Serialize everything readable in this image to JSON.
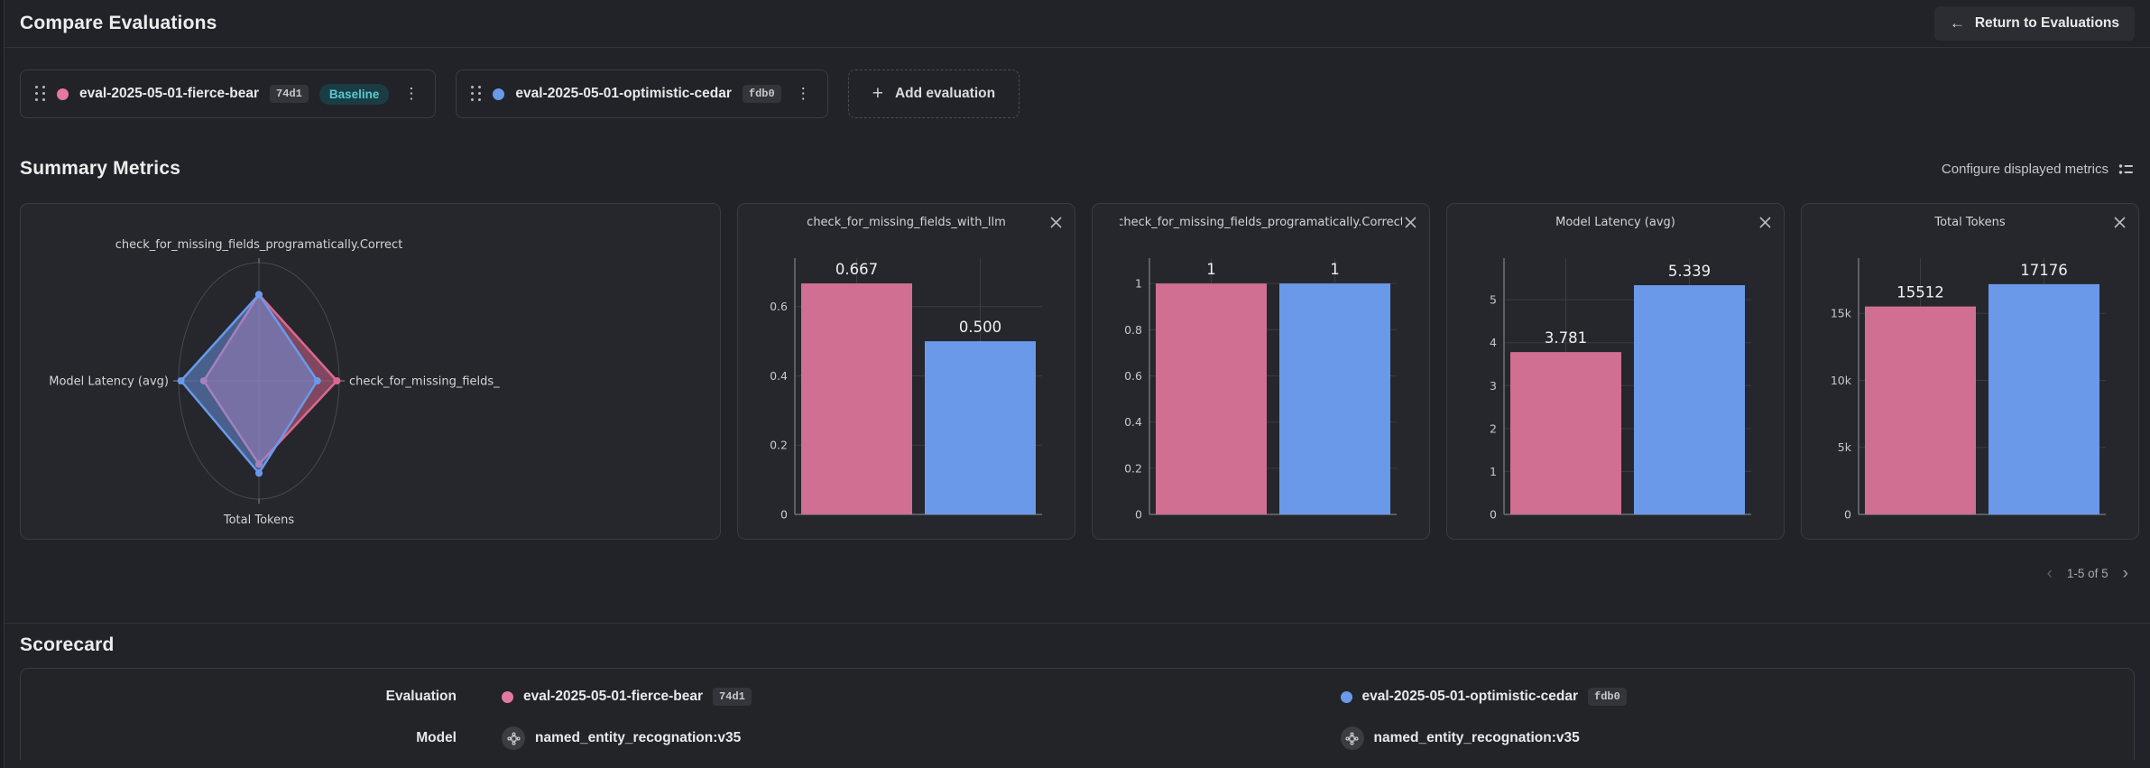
{
  "header": {
    "title": "Compare Evaluations",
    "return_button_label": "Return to Evaluations"
  },
  "toolbar": {
    "evaluations": [
      {
        "name": "eval-2025-05-01-fierce-bear",
        "hash": "74d1",
        "color": "#e4799f",
        "badge": "Baseline"
      },
      {
        "name": "eval-2025-05-01-optimistic-cedar",
        "hash": "fdb0",
        "color": "#6b99ea",
        "badge": null
      }
    ],
    "add_label": "Add evaluation"
  },
  "summary": {
    "title": "Summary Metrics",
    "configure_label": "Configure displayed metrics",
    "pagination": {
      "range": "1-5 of 5",
      "prev": "‹",
      "next": "›"
    }
  },
  "scorecard": {
    "title": "Scorecard",
    "row_labels": {
      "evaluation": "Evaluation",
      "model": "Model"
    },
    "columns": [
      {
        "evaluation": {
          "name": "eval-2025-05-01-fierce-bear",
          "hash": "74d1",
          "color": "#e4799f"
        },
        "model": "named_entity_recognation:v35"
      },
      {
        "evaluation": {
          "name": "eval-2025-05-01-optimistic-cedar",
          "hash": "fdb0",
          "color": "#6b99ea"
        },
        "model": "named_entity_recognation:v35"
      }
    ]
  },
  "colors": {
    "pink": "#d16f92",
    "blue": "#6b99ea",
    "accent_teal": "#58c9d4"
  },
  "chart_data": [
    {
      "type": "radar",
      "axes": [
        {
          "label": "check_for_missing_fields_programatically.Correct",
          "display_max": 1.37
        },
        {
          "label": "check_for_missing_fields_",
          "display_max": 0.687
        },
        {
          "label": "Total Tokens",
          "display_max": 22000
        },
        {
          "label": "Model Latency (avg)",
          "display_max": 5.5
        }
      ],
      "series": [
        {
          "name": "eval-2025-05-01-fierce-bear",
          "color": "#dc6890",
          "values": [
            1,
            0.667,
            15512,
            3.781
          ]
        },
        {
          "name": "eval-2025-05-01-optimistic-cedar",
          "color": "#6b99ea",
          "values": [
            1,
            0.5,
            17176,
            5.339
          ]
        }
      ]
    },
    {
      "type": "bar",
      "title": "check_for_missing_fields_with_llm",
      "title_display": "check_for_missing_fields_with_llm",
      "ymax": 0.74,
      "yticks": [
        {
          "v": 0,
          "t": "0"
        },
        {
          "v": 0.2,
          "t": "0.2"
        },
        {
          "v": 0.4,
          "t": "0.4"
        },
        {
          "v": 0.6,
          "t": "0.6"
        }
      ],
      "series": [
        {
          "name": "eval-2025-05-01-fierce-bear",
          "color": "#d16f92",
          "value": 0.667,
          "label": "0.667"
        },
        {
          "name": "eval-2025-05-01-optimistic-cedar",
          "color": "#6b99ea",
          "value": 0.5,
          "label": "0.500"
        }
      ]
    },
    {
      "type": "bar",
      "title": "check_for_missing_fields_programatically.Correct",
      "title_display": "check_for_missing_fields_programatically.Correct",
      "ymax": 1.11,
      "yticks": [
        {
          "v": 0,
          "t": "0"
        },
        {
          "v": 0.2,
          "t": "0.2"
        },
        {
          "v": 0.4,
          "t": "0.4"
        },
        {
          "v": 0.6,
          "t": "0.6"
        },
        {
          "v": 0.8,
          "t": "0.8"
        },
        {
          "v": 1,
          "t": "1"
        }
      ],
      "series": [
        {
          "name": "eval-2025-05-01-fierce-bear",
          "color": "#d16f92",
          "value": 1,
          "label": "1"
        },
        {
          "name": "eval-2025-05-01-optimistic-cedar",
          "color": "#6b99ea",
          "value": 1,
          "label": "1"
        }
      ]
    },
    {
      "type": "bar",
      "title": "Model Latency (avg)",
      "title_display": "Model Latency (avg)",
      "ymax": 5.97,
      "yticks": [
        {
          "v": 0,
          "t": "0"
        },
        {
          "v": 1,
          "t": "1"
        },
        {
          "v": 2,
          "t": "2"
        },
        {
          "v": 3,
          "t": "3"
        },
        {
          "v": 4,
          "t": "4"
        },
        {
          "v": 5,
          "t": "5"
        }
      ],
      "series": [
        {
          "name": "eval-2025-05-01-fierce-bear",
          "color": "#d16f92",
          "value": 3.781,
          "label": "3.781"
        },
        {
          "name": "eval-2025-05-01-optimistic-cedar",
          "color": "#6b99ea",
          "value": 5.339,
          "label": "5.339"
        }
      ]
    },
    {
      "type": "bar",
      "title": "Total Tokens",
      "title_display": "Total Tokens",
      "ymax": 19120,
      "yticks": [
        {
          "v": 0,
          "t": "0"
        },
        {
          "v": 5000,
          "t": "5k"
        },
        {
          "v": 10000,
          "t": "10k"
        },
        {
          "v": 15000,
          "t": "15k"
        }
      ],
      "series": [
        {
          "name": "eval-2025-05-01-fierce-bear",
          "color": "#d16f92",
          "value": 15512,
          "label": "15512"
        },
        {
          "name": "eval-2025-05-01-optimistic-cedar",
          "color": "#6b99ea",
          "value": 17176,
          "label": "17176"
        }
      ]
    }
  ]
}
